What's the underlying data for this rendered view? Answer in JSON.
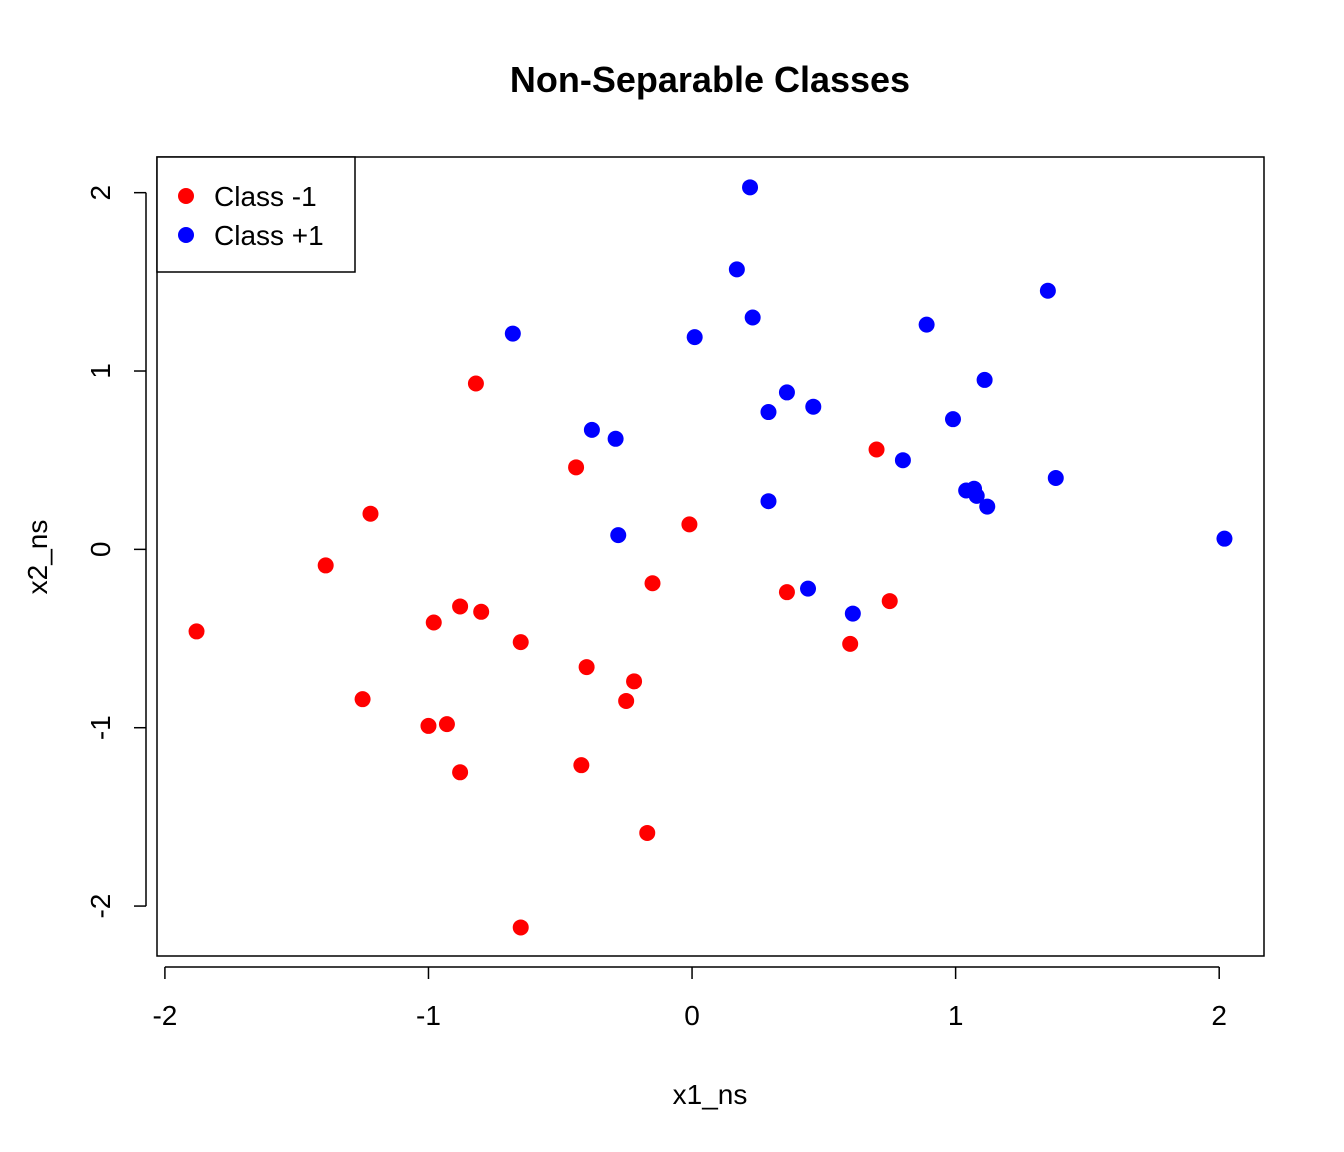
{
  "chart_data": {
    "type": "scatter",
    "title": "Non-Separable Classes",
    "xlabel": "x1_ns",
    "ylabel": "x2_ns",
    "xlim": [
      -2.03,
      2.17
    ],
    "ylim": [
      -2.28,
      2.2
    ],
    "xticks": [
      -2,
      -1,
      0,
      1,
      2
    ],
    "yticks": [
      -2,
      -1,
      0,
      1,
      2
    ],
    "xtick_labels": [
      "-2",
      "-1",
      "0",
      "1",
      "2"
    ],
    "ytick_labels": [
      "-2",
      "-1",
      "0",
      "1",
      "2"
    ],
    "legend_position": "top-left",
    "grid": false,
    "series": [
      {
        "name": "Class -1",
        "color": "#ff0000",
        "points": [
          [
            -1.88,
            -0.46
          ],
          [
            -1.39,
            -0.09
          ],
          [
            -1.22,
            0.2
          ],
          [
            -1.25,
            -0.84
          ],
          [
            -1.0,
            -0.99
          ],
          [
            -0.98,
            -0.41
          ],
          [
            -0.93,
            -0.98
          ],
          [
            -0.88,
            -0.32
          ],
          [
            -0.88,
            -1.25
          ],
          [
            -0.8,
            -0.35
          ],
          [
            -0.82,
            0.93
          ],
          [
            -0.65,
            -0.52
          ],
          [
            -0.65,
            -2.12
          ],
          [
            -0.44,
            0.46
          ],
          [
            -0.4,
            -0.66
          ],
          [
            -0.42,
            -1.21
          ],
          [
            -0.25,
            -0.85
          ],
          [
            -0.22,
            -0.74
          ],
          [
            -0.15,
            -0.19
          ],
          [
            -0.17,
            -1.59
          ],
          [
            -0.01,
            0.14
          ],
          [
            0.36,
            -0.24
          ],
          [
            0.6,
            -0.53
          ],
          [
            0.7,
            0.56
          ],
          [
            0.75,
            -0.29
          ]
        ]
      },
      {
        "name": "Class +1",
        "color": "#0000ff",
        "points": [
          [
            -0.68,
            1.21
          ],
          [
            -0.38,
            0.67
          ],
          [
            -0.29,
            0.62
          ],
          [
            -0.28,
            0.08
          ],
          [
            0.01,
            1.19
          ],
          [
            0.17,
            1.57
          ],
          [
            0.22,
            2.03
          ],
          [
            0.23,
            1.3
          ],
          [
            0.29,
            0.77
          ],
          [
            0.29,
            0.27
          ],
          [
            0.36,
            0.88
          ],
          [
            0.44,
            -0.22
          ],
          [
            0.46,
            0.8
          ],
          [
            0.61,
            -0.36
          ],
          [
            0.8,
            0.5
          ],
          [
            0.89,
            1.26
          ],
          [
            0.99,
            0.73
          ],
          [
            1.04,
            0.33
          ],
          [
            1.07,
            0.34
          ],
          [
            1.08,
            0.3
          ],
          [
            1.11,
            0.95
          ],
          [
            1.12,
            0.24
          ],
          [
            1.35,
            1.45
          ],
          [
            1.38,
            0.4
          ],
          [
            2.02,
            0.06
          ]
        ]
      }
    ]
  }
}
